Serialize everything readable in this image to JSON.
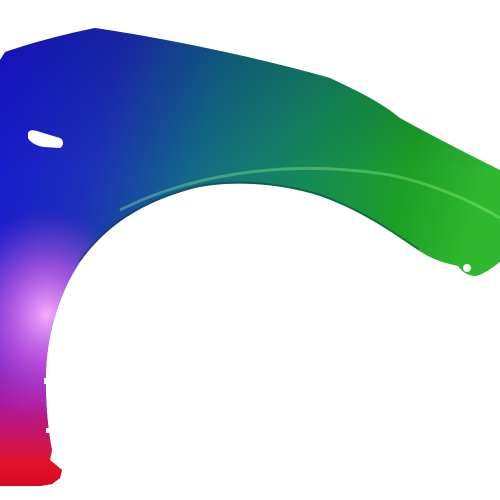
{
  "image": {
    "subject": "fender-panel",
    "background_color": "#ffffff",
    "colors": {
      "blue": "#1a1ed8",
      "navy": "#2b2bb0",
      "teal": "#0f7a74",
      "green": "#1d9a1d",
      "bright_green": "#2fb82f",
      "magenta": "#e34be8",
      "pink": "#f28ef5",
      "red": "#e0122a",
      "deep_red": "#c00018"
    }
  }
}
